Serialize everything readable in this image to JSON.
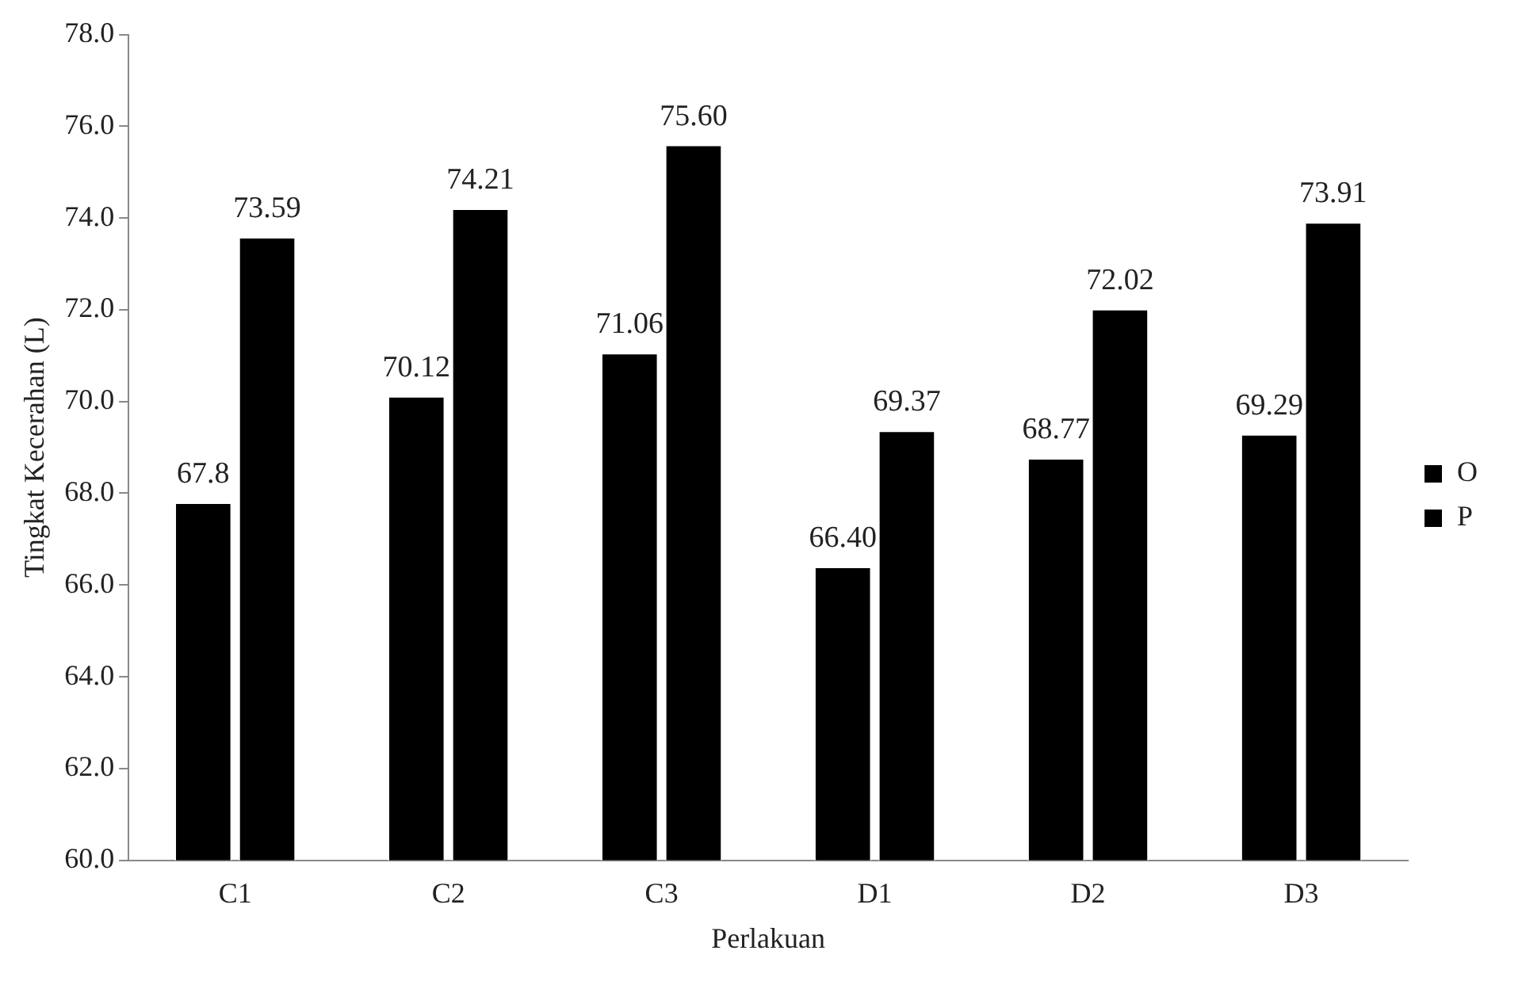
{
  "chart_data": {
    "type": "bar",
    "xlabel": "Perlakuan",
    "ylabel": "Tingkat Kecerahan (L)",
    "categories": [
      "C1",
      "C2",
      "C3",
      "D1",
      "D2",
      "D3"
    ],
    "series": [
      {
        "name": "O",
        "color": "#000000",
        "values": [
          67.8,
          70.12,
          71.06,
          66.4,
          68.77,
          69.29
        ],
        "value_labels": [
          "67.8",
          "70.12",
          "71.06",
          "66.40",
          "68.77",
          "69.29"
        ]
      },
      {
        "name": "P",
        "color": "#000000",
        "values": [
          73.59,
          74.21,
          75.6,
          69.37,
          72.02,
          73.91
        ],
        "value_labels": [
          "73.59",
          "74.21",
          "75.60",
          "69.37",
          "72.02",
          "73.91"
        ]
      }
    ],
    "ylim": [
      60,
      78
    ],
    "yticks": [
      {
        "value": 60,
        "label": "60.0"
      },
      {
        "value": 62,
        "label": "62.0"
      },
      {
        "value": 64,
        "label": "64.0"
      },
      {
        "value": 66,
        "label": "66.0"
      },
      {
        "value": 68,
        "label": "68.0"
      },
      {
        "value": 70,
        "label": "70.0"
      },
      {
        "value": 72,
        "label": "72.0"
      },
      {
        "value": 74,
        "label": "74.0"
      },
      {
        "value": 76,
        "label": "76.0"
      },
      {
        "value": 78,
        "label": "78.0"
      }
    ],
    "grid": false,
    "legend": "right"
  }
}
